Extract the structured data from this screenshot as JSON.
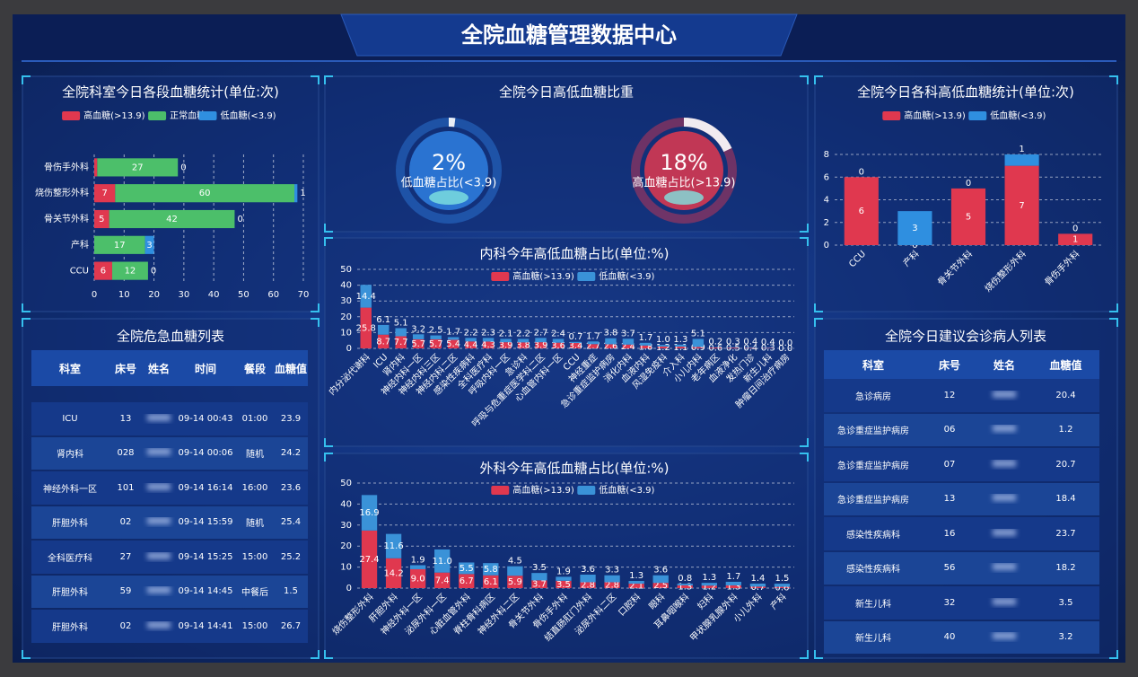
{
  "header": {
    "title": "全院血糖管理数据中心"
  },
  "chart_data": [
    {
      "type": "bar",
      "horizontal": true,
      "stacked": true,
      "title": "全院科室今日各段血糖统计(单位:次)",
      "categories": [
        "骨伤手外科",
        "烧伤整形外科",
        "骨关节外科",
        "产科",
        "CCU"
      ],
      "series": [
        {
          "name": "高血糖(>13.9)",
          "color": "#e0384f",
          "values": [
            1,
            7,
            5,
            0,
            6
          ]
        },
        {
          "name": "正常血糖",
          "color": "#4cbf6a",
          "values": [
            27,
            60,
            42,
            17,
            12
          ]
        },
        {
          "name": "低血糖(<3.9)",
          "color": "#2f8fe0",
          "values": [
            0,
            1,
            0,
            3,
            0
          ]
        }
      ],
      "xlim": [
        0,
        70
      ],
      "xticks": [
        0,
        10,
        20,
        30,
        40,
        50,
        60,
        70
      ],
      "grid": true
    },
    {
      "type": "gauge",
      "title": "全院今日高低血糖比重",
      "categories": [
        "低血糖占比(<3.9)",
        "高血糖占比(>13.9)"
      ],
      "values": [
        2,
        18
      ],
      "value_labels": [
        "2%",
        "18%"
      ],
      "colors": [
        "#2f7fe0",
        "#e0384f"
      ]
    },
    {
      "type": "bar",
      "stacked": true,
      "title": "全院今日各科高低血糖统计(单位:次)",
      "categories": [
        "CCU",
        "产科",
        "骨关节外科",
        "烧伤整形外科",
        "骨伤手外科"
      ],
      "series": [
        {
          "name": "高血糖(>13.9)",
          "color": "#e0384f",
          "values": [
            6,
            0,
            5,
            7,
            1
          ]
        },
        {
          "name": "低血糖(<3.9)",
          "color": "#2f8fe0",
          "values": [
            0,
            3,
            0,
            1,
            0
          ]
        }
      ],
      "ylim": [
        0,
        8
      ],
      "yticks": [
        0,
        2,
        4,
        6,
        8
      ],
      "grid": true
    },
    {
      "type": "bar",
      "stacked": true,
      "title": "内科今年高低血糖占比(单位:%)",
      "categories": [
        "内分泌代谢科",
        "ICU",
        "肾内科",
        "神经内科一区",
        "神经内科三区",
        "神经内科二区",
        "感染性疾病科",
        "全科医疗科",
        "呼吸内科一区",
        "急诊科",
        "呼吸与危重症医学科二区",
        "心血管内科一区",
        "CCU",
        "神经重症",
        "急诊重症监护病房",
        "消化内科",
        "血液内科",
        "风湿免疫科",
        "介入科",
        "小儿内科",
        "老年病区",
        "血液净化",
        "发热门诊",
        "新生儿科",
        "肿瘤日间治疗病房"
      ],
      "series": [
        {
          "name": "高血糖(>13.9)",
          "color": "#e0384f",
          "values": [
            25.8,
            8.7,
            7.7,
            5.7,
            5.7,
            5.4,
            4.4,
            4.3,
            3.9,
            3.8,
            3.9,
            3.6,
            3.4,
            2.7,
            2.6,
            2.4,
            1.8,
            1.2,
            1.1,
            0.9,
            0.6,
            0.5,
            0.4,
            0.3,
            0.0
          ],
          "value_labels": [
            "25.8",
            "8.7",
            "7.7",
            "5.7",
            "5.7",
            "5.4",
            "4.4",
            "4.3",
            "3.9",
            "3.8",
            "3.9",
            "3.6",
            "3.4",
            "2.7",
            "2.6",
            "2.4",
            "1.8",
            "1.2",
            "1.1",
            "0.9",
            "0.6",
            "0.5",
            "0.4",
            "0.3",
            "0.0"
          ]
        },
        {
          "name": "低血糖(<3.9)",
          "color": "#3a92d8",
          "values": [
            14.4,
            6.1,
            5.1,
            3.2,
            2.5,
            1.7,
            2.2,
            2.3,
            2.1,
            2.2,
            2.7,
            2.4,
            0.7,
            1.7,
            3.8,
            3.7,
            1.7,
            1.0,
            1.3,
            5.1,
            0.2,
            0.3,
            0.4,
            0.4,
            0.0
          ],
          "value_labels": [
            "14.4",
            "6.1",
            "5.1",
            "3.2",
            "2.5",
            "1.7",
            "2.2",
            "2.3",
            "2.1",
            "2.2",
            "2.7",
            "2.4",
            "0.7",
            "1.7",
            "3.8",
            "3.7",
            "1.7",
            "1.0",
            "1.3",
            "5.1",
            "0.2",
            "0.3",
            "0.4",
            "0.4",
            "0.0"
          ]
        }
      ],
      "ylim": [
        0,
        50
      ],
      "yticks": [
        0,
        10,
        20,
        30,
        40,
        50
      ],
      "grid": true
    },
    {
      "type": "bar",
      "stacked": true,
      "title": "外科今年高低血糖占比(单位:%)",
      "categories": [
        "烧伤整形外科",
        "肝胆外科",
        "神经外科一区",
        "泌尿外科一区",
        "心脏血管外科",
        "脊柱骨科病区",
        "神经外科二区",
        "骨关节外科",
        "骨伤手外科",
        "结直肠肛门外科",
        "泌尿外科二区",
        "口腔科",
        "眼科",
        "耳鼻咽喉科",
        "妇科",
        "甲状腺乳腺外科",
        "小儿外科",
        "产科"
      ],
      "series": [
        {
          "name": "高血糖(>13.9)",
          "color": "#e0384f",
          "values": [
            27.4,
            14.2,
            9.0,
            7.4,
            6.7,
            6.1,
            5.9,
            3.7,
            3.5,
            2.8,
            2.8,
            2.1,
            2.5,
            1.3,
            1.2,
            1.3,
            0.7,
            0.6
          ],
          "value_labels": [
            "27.4",
            "14.2",
            "9.0",
            "7.4",
            "6.7",
            "6.1",
            "5.9",
            "3.7",
            "3.5",
            "2.8",
            "2.8",
            "2.1",
            "2.5",
            "1.3",
            "1.2",
            "1.3",
            "0.7",
            "0.6"
          ]
        },
        {
          "name": "低血糖(<3.9)",
          "color": "#3a92d8",
          "values": [
            16.9,
            11.6,
            1.9,
            11.0,
            5.5,
            5.8,
            4.5,
            3.5,
            1.9,
            3.6,
            3.3,
            1.3,
            3.6,
            0.8,
            1.3,
            1.7,
            1.4,
            1.5
          ],
          "value_labels": [
            "16.9",
            "11.6",
            "1.9",
            "11.0",
            "5.5",
            "5.8",
            "4.5",
            "3.5",
            "1.9",
            "3.6",
            "3.3",
            "1.3",
            "3.6",
            "0.8",
            "1.3",
            "1.7",
            "1.4",
            "1.5"
          ]
        }
      ],
      "ylim": [
        0,
        50
      ],
      "yticks": [
        0,
        10,
        20,
        30,
        40,
        50
      ],
      "grid": true
    }
  ],
  "tables": [
    {
      "title": "全院危急血糖列表",
      "columns": [
        "科室",
        "床号",
        "姓名",
        "时间",
        "餐段",
        "血糖值"
      ],
      "rows": [
        [
          "ICU",
          "13",
          null,
          "09-14 00:43",
          "01:00",
          "23.9"
        ],
        [
          "肾内科",
          "028",
          null,
          "09-14 00:06",
          "随机",
          "24.2"
        ],
        [
          "神经外科一区",
          "101",
          null,
          "09-14 16:14",
          "16:00",
          "23.6"
        ],
        [
          "肝胆外科",
          "02",
          null,
          "09-14 15:59",
          "随机",
          "25.4"
        ],
        [
          "全科医疗科",
          "27",
          null,
          "09-14 15:25",
          "15:00",
          "25.2"
        ],
        [
          "肝胆外科",
          "59",
          null,
          "09-14 14:45",
          "中餐后",
          "1.5"
        ],
        [
          "肝胆外科",
          "02",
          null,
          "09-14 14:41",
          "15:00",
          "26.7"
        ]
      ]
    },
    {
      "title": "全院今日建议会诊病人列表",
      "columns": [
        "科室",
        "床号",
        "姓名",
        "血糖值"
      ],
      "rows": [
        [
          "急诊病房",
          "12",
          null,
          "20.4"
        ],
        [
          "急诊重症监护病房",
          "06",
          null,
          "1.2"
        ],
        [
          "急诊重症监护病房",
          "07",
          null,
          "20.7"
        ],
        [
          "急诊重症监护病房",
          "13",
          null,
          "18.4"
        ],
        [
          "感染性疾病科",
          "16",
          null,
          "23.7"
        ],
        [
          "感染性疾病科",
          "56",
          null,
          "18.2"
        ],
        [
          "新生儿科",
          "32",
          null,
          "3.5"
        ],
        [
          "新生儿科",
          "40",
          null,
          "3.2"
        ]
      ]
    }
  ]
}
